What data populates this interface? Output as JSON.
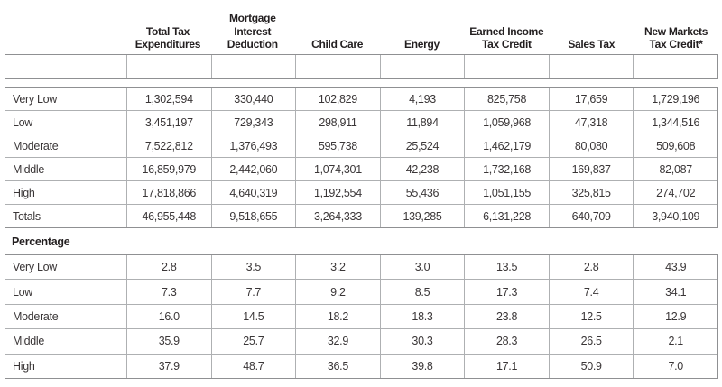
{
  "colors": {
    "header_text": "#231f20",
    "body_text": "#3a3637",
    "outer_border": "#8f9092",
    "inner_border": "#aeb0b2",
    "background": "#ffffff"
  },
  "chart_data": {
    "type": "table",
    "title": "",
    "column_headers": [
      "",
      "Total Tax Expenditures",
      "Mortgage Interest Deduction",
      "Child Care",
      "Energy",
      "Earned Income Tax Credit",
      "Sales Tax",
      "New Markets Tax Credit*"
    ],
    "amount_rows": [
      {
        "label": "Very Low",
        "values": [
          "1,302,594",
          "330,440",
          "102,829",
          "4,193",
          "825,758",
          "17,659",
          "1,729,196"
        ]
      },
      {
        "label": "Low",
        "values": [
          "3,451,197",
          "729,343",
          "298,911",
          "11,894",
          "1,059,968",
          "47,318",
          "1,344,516"
        ]
      },
      {
        "label": "Moderate",
        "values": [
          "7,522,812",
          "1,376,493",
          "595,738",
          "25,524",
          "1,462,179",
          "80,080",
          "509,608"
        ]
      },
      {
        "label": "Middle",
        "values": [
          "16,859,979",
          "2,442,060",
          "1,074,301",
          "42,238",
          "1,732,168",
          "169,837",
          "82,087"
        ]
      },
      {
        "label": "High",
        "values": [
          "17,818,866",
          "4,640,319",
          "1,192,554",
          "55,436",
          "1,051,155",
          "325,815",
          "274,702"
        ]
      },
      {
        "label": "Totals",
        "values": [
          "46,955,448",
          "9,518,655",
          "3,264,333",
          "139,285",
          "6,131,228",
          "640,709",
          "3,940,109"
        ]
      }
    ],
    "percentage_section_label": "Percentage",
    "percentage_rows": [
      {
        "label": "Very Low",
        "values": [
          "2.8",
          "3.5",
          "3.2",
          "3.0",
          "13.5",
          "2.8",
          "43.9"
        ]
      },
      {
        "label": "Low",
        "values": [
          "7.3",
          "7.7",
          "9.2",
          "8.5",
          "17.3",
          "7.4",
          "34.1"
        ]
      },
      {
        "label": "Moderate",
        "values": [
          "16.0",
          "14.5",
          "18.2",
          "18.3",
          "23.8",
          "12.5",
          "12.9"
        ]
      },
      {
        "label": "Middle",
        "values": [
          "35.9",
          "25.7",
          "32.9",
          "30.3",
          "28.3",
          "26.5",
          "2.1"
        ]
      },
      {
        "label": "High",
        "values": [
          "37.9",
          "48.7",
          "36.5",
          "39.8",
          "17.1",
          "50.9",
          "7.0"
        ]
      }
    ]
  }
}
